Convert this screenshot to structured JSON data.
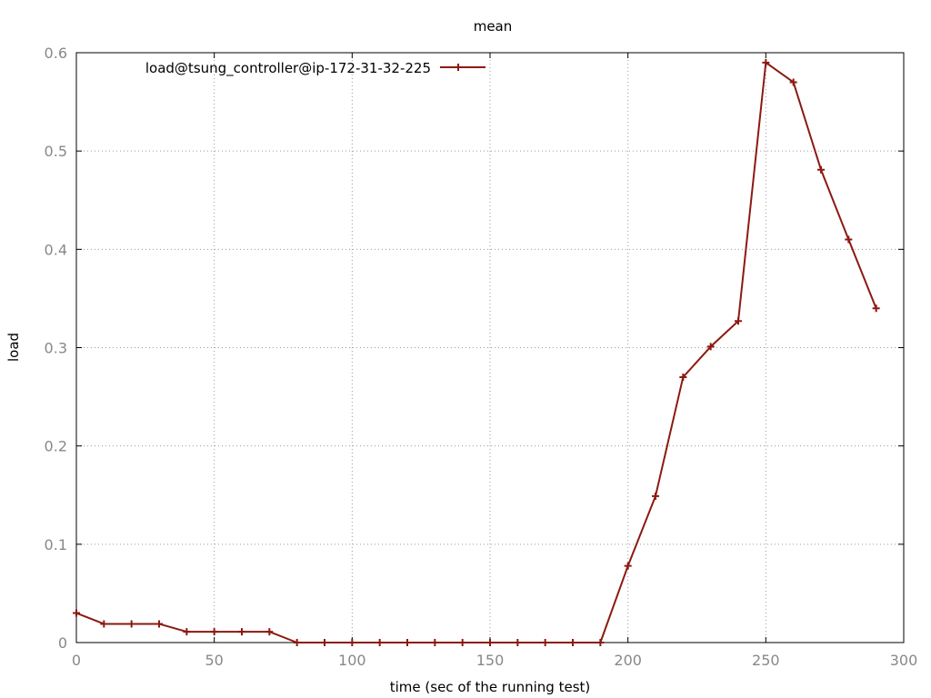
{
  "chart_data": {
    "type": "line",
    "title": "mean",
    "xlabel": "time (sec of the running test)",
    "ylabel": "load",
    "xlim": [
      0,
      300
    ],
    "ylim": [
      0,
      0.6
    ],
    "xticks": [
      "0",
      "50",
      "100",
      "150",
      "200",
      "250",
      "300"
    ],
    "yticks": [
      "0",
      "0.1",
      "0.2",
      "0.3",
      "0.4",
      "0.5",
      "0.6"
    ],
    "grid": true,
    "legend_position": "top-left",
    "series": [
      {
        "name": "load@tsung_controller@ip-172-31-32-225",
        "color": "#8b1a10",
        "marker": "plus",
        "x": [
          0,
          10,
          20,
          30,
          40,
          50,
          60,
          70,
          80,
          90,
          100,
          110,
          120,
          130,
          140,
          150,
          160,
          170,
          180,
          190,
          200,
          210,
          220,
          230,
          240,
          250,
          260,
          270,
          280,
          290
        ],
        "y": [
          0.03,
          0.019,
          0.019,
          0.019,
          0.011,
          0.011,
          0.011,
          0.011,
          0,
          0,
          0,
          0,
          0,
          0,
          0,
          0,
          0,
          0,
          0,
          0,
          0.078,
          0.149,
          0.27,
          0.301,
          0.327,
          0.59,
          0.57,
          0.481,
          0.41,
          0.34
        ]
      }
    ]
  }
}
